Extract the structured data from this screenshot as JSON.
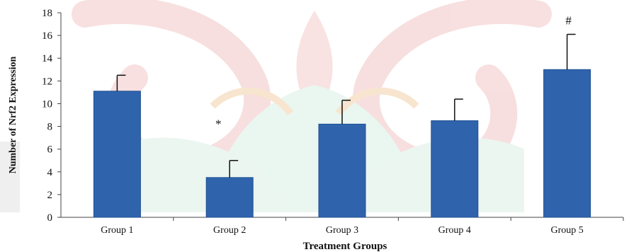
{
  "chart_data": {
    "type": "bar",
    "categories": [
      "Group 1",
      "Group 2",
      "Group 3",
      "Group 4",
      "Group 5"
    ],
    "values": [
      11.1,
      3.5,
      8.2,
      8.5,
      13.0
    ],
    "error_upper": [
      12.5,
      5.0,
      10.3,
      10.4,
      16.1
    ],
    "significance": [
      "",
      "*",
      "",
      "",
      "#"
    ],
    "title": "",
    "xlabel": "Treatment Groups",
    "ylabel": "Number of Nrf2 Expression",
    "ylim": [
      0,
      18
    ],
    "yticks": [
      0,
      2,
      4,
      6,
      8,
      10,
      12,
      14,
      16,
      18
    ],
    "grid": false,
    "colors": {
      "bar": "#2f64ad",
      "bar_edge": "#1f4f93",
      "axis": "#444444",
      "text": "#111111"
    }
  }
}
